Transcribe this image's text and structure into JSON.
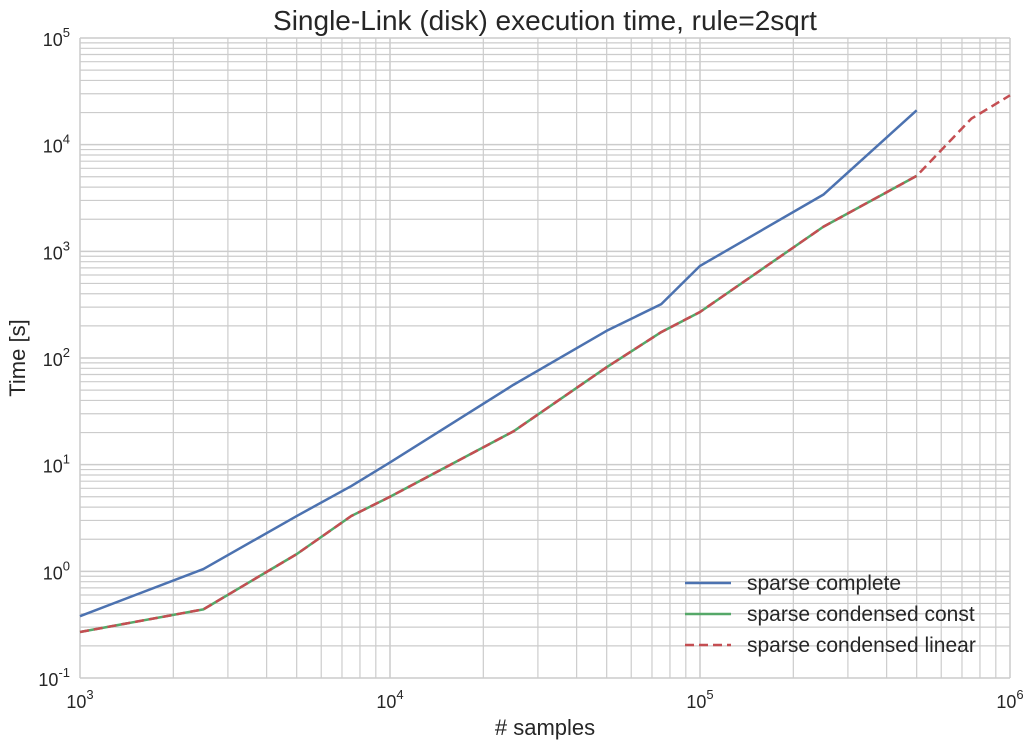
{
  "chart_data": {
    "type": "line",
    "title": "Single-Link (disk) execution time, rule=2sqrt",
    "xlabel": "# samples",
    "ylabel": "Time [s]",
    "xscale": "log",
    "yscale": "log",
    "xlim": [
      1000,
      1000000
    ],
    "ylim": [
      0.1,
      100000
    ],
    "x_ticks": [
      {
        "base": "10",
        "exp": "3",
        "value": 1000
      },
      {
        "base": "10",
        "exp": "4",
        "value": 10000
      },
      {
        "base": "10",
        "exp": "5",
        "value": 100000
      },
      {
        "base": "10",
        "exp": "6",
        "value": 1000000
      }
    ],
    "y_ticks": [
      {
        "base": "10",
        "exp": "-1",
        "value": 0.1
      },
      {
        "base": "10",
        "exp": "0",
        "value": 1
      },
      {
        "base": "10",
        "exp": "1",
        "value": 10
      },
      {
        "base": "10",
        "exp": "2",
        "value": 100
      },
      {
        "base": "10",
        "exp": "3",
        "value": 1000
      },
      {
        "base": "10",
        "exp": "4",
        "value": 10000
      },
      {
        "base": "10",
        "exp": "5",
        "value": 100000
      }
    ],
    "grid": true,
    "legend_position": "lower-right",
    "series": [
      {
        "name": "sparse complete",
        "color": "#4c72b0",
        "style": "solid",
        "x": [
          1000,
          2500,
          5000,
          7500,
          10000,
          25000,
          50000,
          75000,
          100000,
          250000,
          500000
        ],
        "y": [
          0.38,
          1.05,
          3.3,
          6.3,
          10.5,
          56,
          180,
          320,
          730,
          3400,
          21000
        ]
      },
      {
        "name": "sparse condensed const",
        "color": "#55a868",
        "style": "solid",
        "x": [
          1000,
          2500,
          5000,
          7500,
          10000,
          25000,
          50000,
          75000,
          100000,
          250000,
          500000
        ],
        "y": [
          0.27,
          0.44,
          1.45,
          3.3,
          5.0,
          20.5,
          82,
          175,
          270,
          1700,
          5100
        ]
      },
      {
        "name": "sparse condensed linear",
        "color": "#c44e52",
        "style": "dashed",
        "x": [
          1000,
          2500,
          5000,
          7500,
          10000,
          25000,
          50000,
          75000,
          100000,
          250000,
          500000,
          750000,
          1000000
        ],
        "y": [
          0.27,
          0.44,
          1.45,
          3.3,
          5.0,
          20.5,
          82,
          175,
          270,
          1700,
          5100,
          17500,
          29000
        ]
      }
    ]
  }
}
